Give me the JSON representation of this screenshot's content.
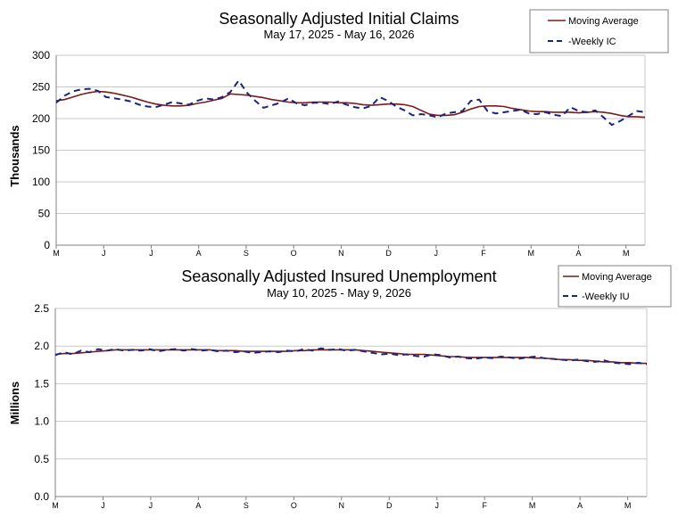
{
  "colors": {
    "moving_average": "#7a1a1a",
    "weekly": "#1a237e",
    "grid": "#c8c8c8",
    "axis": "#808080"
  },
  "chart_data": [
    {
      "type": "line",
      "title": "Seasonally Adjusted Initial Claims",
      "subtitle": "May 17, 2025 - May 16, 2026",
      "ylabel": "Thousands",
      "ylim": [
        0,
        300
      ],
      "yticks": [
        "0",
        "50",
        "100",
        "150",
        "200",
        "250",
        "300"
      ],
      "xtick_labels": [
        "M",
        "J",
        "J",
        "A",
        "S",
        "O",
        "N",
        "D",
        "J",
        "F",
        "M",
        "A",
        "M"
      ],
      "legend_position": "top-right",
      "series": [
        {
          "name": "Moving Average",
          "style": "solid",
          "values": [
            228,
            230,
            234,
            238,
            241,
            243,
            242,
            240,
            237,
            234,
            230,
            226,
            223,
            221,
            220,
            220,
            221,
            224,
            226,
            229,
            232,
            239,
            238,
            237,
            235,
            233,
            230,
            228,
            226,
            225,
            225,
            226,
            226,
            226,
            225,
            225,
            224,
            222,
            221,
            222,
            223,
            223,
            222,
            219,
            213,
            207,
            205,
            205,
            206,
            210,
            215,
            219,
            220,
            220,
            219,
            216,
            214,
            212,
            211,
            211,
            210,
            210,
            210,
            209,
            210,
            211,
            210,
            208,
            205,
            203,
            203,
            202
          ]
        },
        {
          "name": "-Weekly IC",
          "style": "dashed",
          "values": [
            225,
            236,
            243,
            246,
            247,
            244,
            234,
            232,
            230,
            227,
            222,
            219,
            218,
            222,
            226,
            224,
            222,
            228,
            232,
            230,
            234,
            242,
            260,
            241,
            228,
            217,
            221,
            225,
            232,
            224,
            221,
            225,
            225,
            223,
            227,
            222,
            218,
            216,
            220,
            234,
            228,
            219,
            213,
            205,
            207,
            205,
            202,
            208,
            210,
            212,
            228,
            230,
            212,
            208,
            210,
            212,
            214,
            208,
            207,
            210,
            206,
            204,
            218,
            212,
            210,
            213,
            202,
            190,
            196,
            204,
            212,
            210
          ]
        }
      ]
    },
    {
      "type": "line",
      "title": "Seasonally Adjusted Insured Unemployment",
      "subtitle": "May 10, 2025 - May 9, 2026",
      "ylabel": "Millions",
      "ylim": [
        0,
        2.5
      ],
      "yticks": [
        "0.0",
        "0.5",
        "1.0",
        "1.5",
        "2.0",
        "2.5"
      ],
      "xtick_labels": [
        "M",
        "J",
        "J",
        "A",
        "S",
        "O",
        "N",
        "D",
        "J",
        "F",
        "M",
        "A",
        "M"
      ],
      "legend_position": "top-right",
      "series": [
        {
          "name": "Moving Average",
          "style": "solid",
          "values": [
            1.89,
            1.9,
            1.9,
            1.91,
            1.92,
            1.93,
            1.94,
            1.95,
            1.95,
            1.95,
            1.95,
            1.95,
            1.95,
            1.95,
            1.95,
            1.95,
            1.95,
            1.95,
            1.95,
            1.94,
            1.94,
            1.94,
            1.93,
            1.93,
            1.93,
            1.93,
            1.93,
            1.93,
            1.94,
            1.94,
            1.95,
            1.95,
            1.95,
            1.95,
            1.95,
            1.95,
            1.94,
            1.93,
            1.92,
            1.91,
            1.9,
            1.89,
            1.89,
            1.89,
            1.88,
            1.87,
            1.86,
            1.86,
            1.85,
            1.85,
            1.85,
            1.85,
            1.85,
            1.85,
            1.85,
            1.85,
            1.84,
            1.84,
            1.83,
            1.82,
            1.82,
            1.81,
            1.81,
            1.8,
            1.79,
            1.79,
            1.78,
            1.78,
            1.77,
            1.77
          ]
        },
        {
          "name": "-Weekly IU",
          "style": "dashed",
          "values": [
            1.88,
            1.92,
            1.89,
            1.94,
            1.92,
            1.96,
            1.94,
            1.96,
            1.94,
            1.95,
            1.94,
            1.96,
            1.93,
            1.95,
            1.96,
            1.94,
            1.96,
            1.94,
            1.95,
            1.93,
            1.94,
            1.92,
            1.93,
            1.91,
            1.92,
            1.93,
            1.92,
            1.94,
            1.93,
            1.96,
            1.94,
            1.97,
            1.95,
            1.96,
            1.94,
            1.95,
            1.93,
            1.91,
            1.89,
            1.9,
            1.88,
            1.89,
            1.87,
            1.86,
            1.89,
            1.88,
            1.85,
            1.86,
            1.84,
            1.83,
            1.85,
            1.84,
            1.86,
            1.85,
            1.83,
            1.85,
            1.86,
            1.84,
            1.83,
            1.82,
            1.81,
            1.82,
            1.8,
            1.79,
            1.81,
            1.78,
            1.77,
            1.76,
            1.78,
            1.76
          ]
        }
      ]
    }
  ]
}
